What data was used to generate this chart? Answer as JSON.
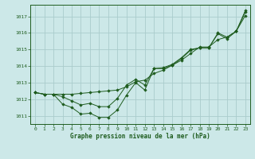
{
  "title": "Graphe pression niveau de la mer (hPa)",
  "bg_color": "#cce8e8",
  "grid_color": "#aacccc",
  "line_color": "#1e5c1e",
  "marker_color": "#1e5c1e",
  "xlim": [
    -0.5,
    23.5
  ],
  "ylim": [
    1010.5,
    1017.7
  ],
  "xticks": [
    0,
    1,
    2,
    3,
    4,
    5,
    6,
    7,
    8,
    9,
    10,
    11,
    12,
    13,
    14,
    15,
    16,
    17,
    18,
    19,
    20,
    21,
    22,
    23
  ],
  "yticks": [
    1011,
    1012,
    1013,
    1014,
    1015,
    1016,
    1017
  ],
  "series": [
    [
      1012.4,
      1012.3,
      1012.3,
      1011.7,
      1011.5,
      1011.1,
      1011.15,
      1010.9,
      1010.9,
      1011.35,
      1012.25,
      1013.0,
      1012.55,
      1013.85,
      1013.9,
      1014.1,
      1014.5,
      1015.0,
      1015.1,
      1015.1,
      1016.0,
      1015.75,
      1016.1,
      1017.35
    ],
    [
      1012.4,
      1012.3,
      1012.3,
      1012.15,
      1011.9,
      1011.65,
      1011.75,
      1011.55,
      1011.55,
      1012.05,
      1012.85,
      1013.2,
      1012.85,
      1013.85,
      1013.85,
      1014.05,
      1014.45,
      1014.95,
      1015.1,
      1015.1,
      1015.95,
      1015.65,
      1016.1,
      1017.25
    ],
    [
      1012.4,
      1012.3,
      1012.3,
      1012.3,
      1012.3,
      1012.35,
      1012.4,
      1012.45,
      1012.5,
      1012.55,
      1012.75,
      1013.05,
      1013.15,
      1013.55,
      1013.75,
      1014.05,
      1014.35,
      1014.75,
      1015.15,
      1015.15,
      1015.6,
      1015.75,
      1016.1,
      1017.05
    ]
  ]
}
